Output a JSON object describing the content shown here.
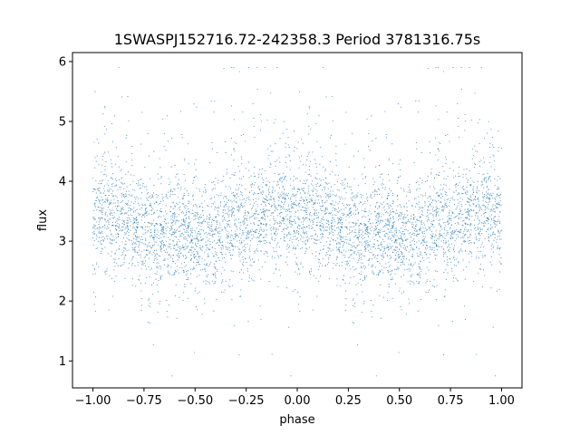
{
  "chart_data": {
    "type": "scatter",
    "title": "1SWASPJ152716.72-242358.3 Period 3781316.75s",
    "xlabel": "phase",
    "ylabel": "flux",
    "xlim": [
      -1.1,
      1.1
    ],
    "ylim": [
      0.55,
      6.15
    ],
    "xticks": [
      -1.0,
      -0.75,
      -0.5,
      -0.25,
      0.0,
      0.25,
      0.5,
      0.75,
      1.0
    ],
    "xtick_labels": [
      "−1.00",
      "−0.75",
      "−0.50",
      "−0.25",
      "0.00",
      "0.25",
      "0.50",
      "0.75",
      "1.00"
    ],
    "yticks": [
      1,
      2,
      3,
      4,
      5,
      6
    ],
    "ytick_labels": [
      "1",
      "2",
      "3",
      "4",
      "5",
      "6"
    ],
    "grid": false,
    "marker_color": "#1f77b4",
    "series_profile": {
      "x_range": [
        -1.0,
        1.0
      ],
      "phase_mirrored": true,
      "median_flux_curve": {
        "phase": [
          0.0,
          0.05,
          0.1,
          0.15,
          0.2,
          0.25,
          0.3,
          0.35,
          0.4,
          0.45,
          0.5,
          0.55,
          0.6,
          0.65,
          0.7,
          0.75,
          0.8,
          0.85,
          0.9,
          0.95,
          1.0
        ],
        "flux": [
          3.35,
          3.45,
          3.4,
          3.3,
          3.2,
          3.15,
          3.1,
          3.1,
          3.15,
          3.1,
          3.05,
          3.1,
          3.15,
          3.2,
          3.35,
          3.3,
          3.35,
          3.4,
          3.45,
          3.5,
          3.35
        ]
      },
      "flux_range": [
        0.75,
        5.9
      ]
    }
  }
}
